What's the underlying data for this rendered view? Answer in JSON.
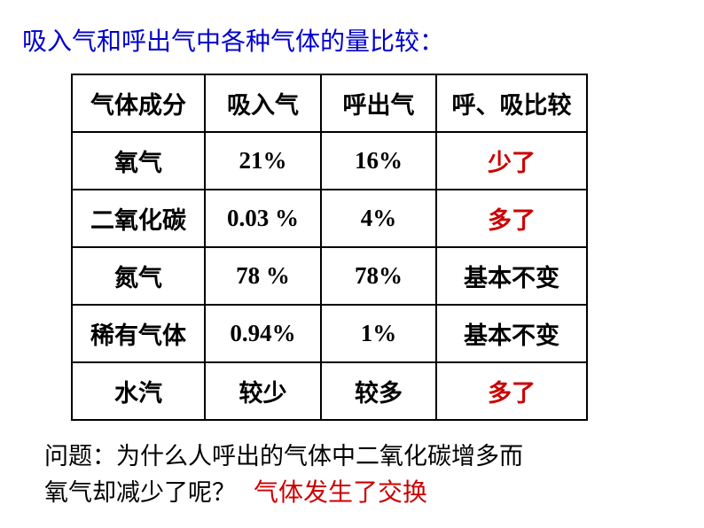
{
  "title": "吸入气和呼出气中各种气体的量比较：",
  "table": {
    "columns": [
      "气体成分",
      "吸入气",
      "呼出气",
      "呼、吸比较"
    ],
    "rows": [
      {
        "gas": "氧气",
        "inhale": "21%",
        "exhale": "16%",
        "compare": "少了",
        "compare_red": true
      },
      {
        "gas": "二氧化碳",
        "inhale": "0.03 %",
        "exhale": "4%",
        "compare": "多了",
        "compare_red": true
      },
      {
        "gas": "氮气",
        "inhale": "78 %",
        "exhale": "78%",
        "compare": "基本不变",
        "compare_red": false
      },
      {
        "gas": "稀有气体",
        "inhale": "0.94%",
        "exhale": "1%",
        "compare": "基本不变",
        "compare_red": false
      },
      {
        "gas": "水汽",
        "inhale": "较少",
        "exhale": "较多",
        "compare": "多了",
        "compare_red": true
      }
    ]
  },
  "question": {
    "line1": "问题：为什么人呼出的气体中二氧化碳增多而",
    "line2": "氧气却减少了呢？",
    "answer": "气体发生了交换"
  },
  "colors": {
    "title_color": "#0000cc",
    "red_color": "#cc0000",
    "black_color": "#000000",
    "border_color": "#000000",
    "background_color": "#ffffff"
  },
  "typography": {
    "title_fontsize": 28,
    "table_fontsize": 27,
    "question_fontsize": 27,
    "answer_fontsize": 28
  }
}
